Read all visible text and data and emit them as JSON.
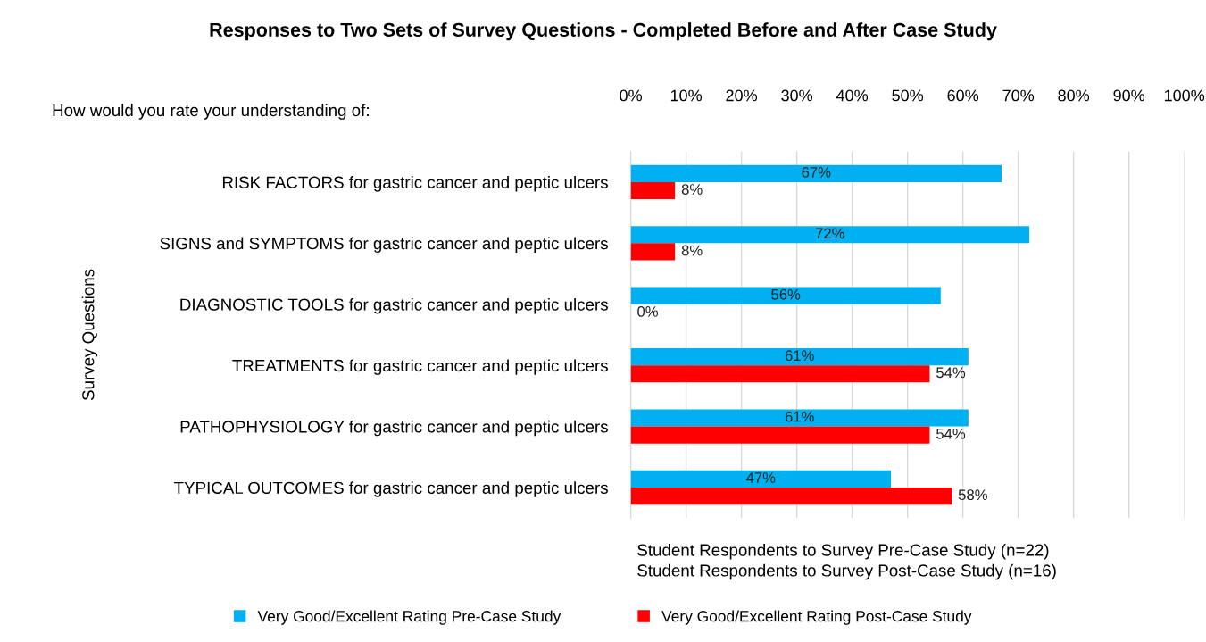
{
  "chart_data": {
    "type": "bar",
    "orientation": "horizontal",
    "title": "Responses to Two Sets of Survey Questions - Completed Before and After Case Study",
    "ylabel": "Survey Questions",
    "categories": [
      "RISK FACTORS for gastric cancer and peptic ulcers",
      "SIGNS and SYMPTOMS for gastric cancer and peptic ulcers",
      "DIAGNOSTIC TOOLS for gastric cancer and peptic ulcers",
      "TREATMENTS for gastric cancer and peptic ulcers",
      "PATHOPHYSIOLOGY for gastric cancer and peptic ulcers",
      "TYPICAL OUTCOMES for gastric cancer and peptic ulcers"
    ],
    "series": [
      {
        "name": "Very Good/Excellent Rating Pre-Case Study",
        "color": "#00b0f0",
        "values": [
          67,
          72,
          56,
          61,
          61,
          47
        ],
        "value_labels": [
          "67%",
          "72%",
          "56%",
          "61%",
          "61%",
          "47%"
        ]
      },
      {
        "name": "Very Good/Excellent Rating Post-Case Study",
        "color": "#ff0000",
        "values": [
          8,
          8,
          0,
          54,
          54,
          58
        ],
        "value_labels": [
          "8%",
          "8%",
          "0%",
          "54%",
          "54%",
          "58%"
        ]
      }
    ],
    "xlim": [
      0,
      100
    ],
    "xticks": [
      {
        "value": 0,
        "label": "0%"
      },
      {
        "value": 10,
        "label": "10%"
      },
      {
        "value": 20,
        "label": "20%"
      },
      {
        "value": 30,
        "label": "30%"
      },
      {
        "value": 40,
        "label": "40%"
      },
      {
        "value": 50,
        "label": "50%"
      },
      {
        "value": 60,
        "label": "60%"
      },
      {
        "value": 70,
        "label": "70%"
      },
      {
        "value": 80,
        "label": "80%"
      },
      {
        "value": 90,
        "label": "90%"
      },
      {
        "value": 100,
        "label": "100%"
      }
    ],
    "grid": "x",
    "legend": "bottom",
    "annotations": [
      "How would you rate your understanding of:",
      "Student Respondents to Survey Pre-Case Study (n=22)\nStudent Respondents to Survey Post-Case Study (n=16)"
    ]
  }
}
